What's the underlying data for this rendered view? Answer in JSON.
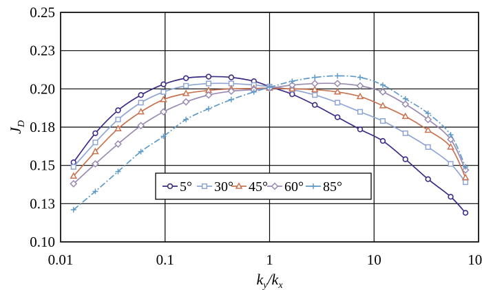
{
  "chart_data": {
    "type": "line",
    "title": "",
    "xlabel": "k_y/k_x",
    "ylabel": "J_D",
    "xscale": "log",
    "xlim": [
      0.01,
      100
    ],
    "ylim": [
      0.1,
      0.25
    ],
    "xticks": [
      0.01,
      0.1,
      1,
      10,
      100
    ],
    "xtick_labels": [
      "0.01",
      "0.1",
      "1",
      "10",
      "100"
    ],
    "yticks": [
      0.1,
      0.125,
      0.15,
      0.175,
      0.2,
      0.225,
      0.25
    ],
    "ytick_labels": [
      "0.10",
      "0.13",
      "0.15",
      "0.18",
      "0.20",
      "0.23",
      "0.25"
    ],
    "grid": true,
    "legend_position": "inside-lower-center",
    "x": [
      0.0133,
      0.0215,
      0.0355,
      0.0587,
      0.0966,
      0.1585,
      0.261,
      0.43,
      0.708,
      1.0,
      1.645,
      2.71,
      4.466,
      7.356,
      12.12,
      19.95,
      32.86,
      54.12,
      75.0
    ],
    "series": [
      {
        "name": "5°",
        "color": "#3c2a85",
        "marker": "circle",
        "values": [
          0.152,
          0.171,
          0.186,
          0.196,
          0.203,
          0.207,
          0.208,
          0.2075,
          0.205,
          0.2015,
          0.1965,
          0.1895,
          0.1815,
          0.1735,
          0.166,
          0.154,
          0.141,
          0.1295,
          0.119
        ]
      },
      {
        "name": "30°",
        "color": "#8ea4d2",
        "marker": "square",
        "values": [
          0.149,
          0.165,
          0.18,
          0.191,
          0.198,
          0.202,
          0.2035,
          0.2035,
          0.2025,
          0.2015,
          0.1995,
          0.196,
          0.191,
          0.185,
          0.179,
          0.171,
          0.162,
          0.151,
          0.139
        ]
      },
      {
        "name": "45°",
        "color": "#c87250",
        "marker": "triangle",
        "values": [
          0.143,
          0.159,
          0.174,
          0.185,
          0.193,
          0.197,
          0.199,
          0.2,
          0.2003,
          0.2005,
          0.2,
          0.1995,
          0.198,
          0.195,
          0.189,
          0.182,
          0.173,
          0.162,
          0.142
        ]
      },
      {
        "name": "60°",
        "color": "#9a8ab0",
        "marker": "diamond",
        "values": [
          0.138,
          0.151,
          0.164,
          0.176,
          0.185,
          0.1915,
          0.196,
          0.1985,
          0.1995,
          0.2005,
          0.2025,
          0.2035,
          0.2035,
          0.202,
          0.198,
          0.19,
          0.18,
          0.167,
          0.147
        ]
      },
      {
        "name": "85°",
        "color": "#5e9ac8",
        "marker": "plus",
        "values": [
          0.121,
          0.133,
          0.146,
          0.159,
          0.169,
          0.18,
          0.187,
          0.193,
          0.198,
          0.201,
          0.205,
          0.2075,
          0.2085,
          0.2075,
          0.2025,
          0.1935,
          0.184,
          0.17,
          0.149
        ]
      }
    ]
  }
}
